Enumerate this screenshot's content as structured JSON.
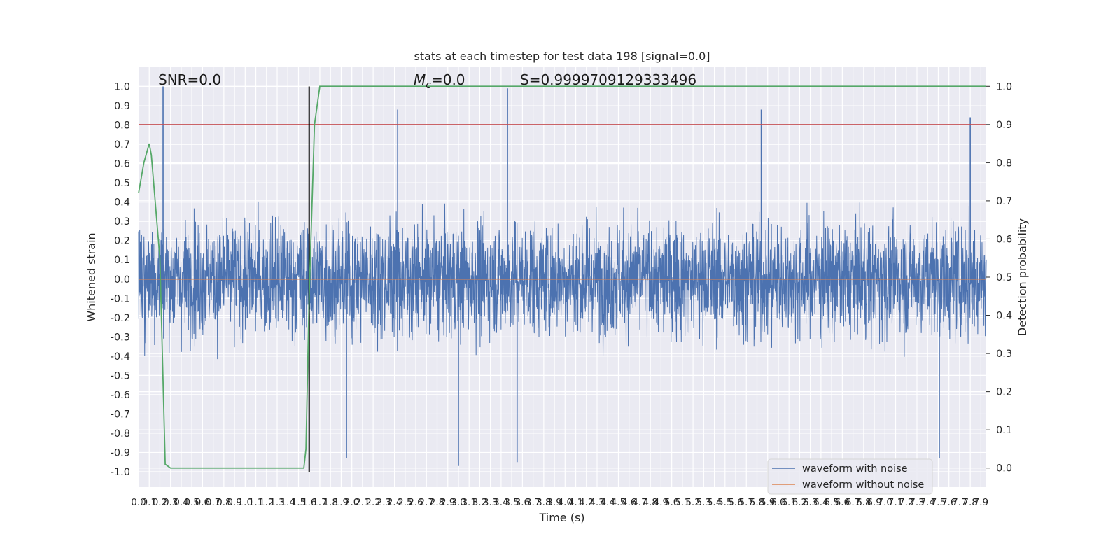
{
  "chart_data": {
    "type": "line",
    "title": "stats at each timestep for test data 198 [signal=0.0]",
    "xlabel": "Time (s)",
    "ylabel": "Whitened strain",
    "y2label": "Detection probability",
    "xlim": [
      0.0,
      7.95
    ],
    "ylim": [
      -1.08,
      1.1
    ],
    "y2lim": [
      -0.05,
      1.05
    ],
    "x_ticks": [
      "0.0",
      "0.1",
      "0.2",
      "0.3",
      "0.4",
      "0.5",
      "0.6",
      "0.7",
      "0.8",
      "0.9",
      "1.0",
      "1.1",
      "1.2",
      "1.3",
      "1.4",
      "1.5",
      "1.6",
      "1.7",
      "1.8",
      "1.9",
      "2.0",
      "2.1",
      "2.2",
      "2.3",
      "2.4",
      "2.5",
      "2.6",
      "2.7",
      "2.8",
      "2.9",
      "3.0",
      "3.1",
      "3.2",
      "3.3",
      "3.4",
      "3.5",
      "3.6",
      "3.7",
      "3.8",
      "3.9",
      "4.0",
      "4.1",
      "4.2",
      "4.3",
      "4.4",
      "4.5",
      "4.6",
      "4.7",
      "4.8",
      "4.9",
      "5.0",
      "5.1",
      "5.2",
      "5.3",
      "5.4",
      "5.5",
      "5.6",
      "5.7",
      "5.8",
      "5.9",
      "6.0",
      "6.1",
      "6.2",
      "6.3",
      "6.4",
      "6.5",
      "6.6",
      "6.7",
      "6.8",
      "6.9",
      "7.0",
      "7.1",
      "7.2",
      "7.3",
      "7.4",
      "7.5",
      "7.6",
      "7.7",
      "7.8",
      "7.9"
    ],
    "y_ticks": [
      "1.0",
      "0.9",
      "0.8",
      "0.7",
      "0.6",
      "0.5",
      "0.4",
      "0.3",
      "0.2",
      "0.1",
      "0.0",
      "-0.1",
      "-0.2",
      "-0.3",
      "-0.4",
      "-0.5",
      "-0.6",
      "-0.7",
      "-0.8",
      "-0.9",
      "-1.0"
    ],
    "y2_ticks": [
      "1.0",
      "0.9",
      "0.8",
      "0.7",
      "0.6",
      "0.5",
      "0.4",
      "0.3",
      "0.2",
      "0.1",
      "0.0"
    ],
    "grid": true,
    "legend_position": "lower-right",
    "annotations": {
      "snr": "SNR=0.0",
      "mc_symbol": "M",
      "mc_sub": "c",
      "mc_value": "=0.0",
      "s": "S=0.9999709129333496"
    },
    "threshold": {
      "value": 0.9,
      "axis": "y2",
      "color": "#c44e52"
    },
    "marker_line": {
      "x": 1.6,
      "y_range": [
        -1.0,
        1.0
      ],
      "color": "#000000"
    },
    "noise_peaks": [
      {
        "x": 0.23,
        "y": 1.0
      },
      {
        "x": 3.46,
        "y": 0.99
      },
      {
        "x": 2.43,
        "y": 0.88
      },
      {
        "x": 5.84,
        "y": 0.88
      },
      {
        "x": 7.8,
        "y": 0.84
      },
      {
        "x": 3.0,
        "y": -0.97
      },
      {
        "x": 3.55,
        "y": -0.95
      },
      {
        "x": 7.51,
        "y": -0.93
      },
      {
        "x": 1.95,
        "y": -0.93
      }
    ],
    "series": [
      {
        "name": "waveform with noise",
        "color": "#4c72b0",
        "axis": "y",
        "description_range": [
          -0.97,
          1.0
        ]
      },
      {
        "name": "waveform without noise",
        "color": "#dd8452",
        "axis": "y",
        "x": [
          0.0,
          7.95
        ],
        "y": [
          0.0,
          0.0
        ]
      },
      {
        "name": "",
        "color": "#55a868",
        "axis": "y2",
        "x": [
          0.0,
          0.05,
          0.1,
          0.12,
          0.2,
          0.25,
          0.3,
          0.5,
          1.0,
          1.5,
          1.55,
          1.57,
          1.6,
          1.65,
          1.7,
          1.8,
          3.0,
          5.0,
          7.95
        ],
        "y": [
          0.72,
          0.8,
          0.85,
          0.82,
          0.55,
          0.01,
          0.0,
          0.0,
          0.0,
          0.0,
          0.0,
          0.05,
          0.45,
          0.9,
          1.0,
          1.0,
          1.0,
          1.0,
          1.0
        ]
      }
    ]
  }
}
